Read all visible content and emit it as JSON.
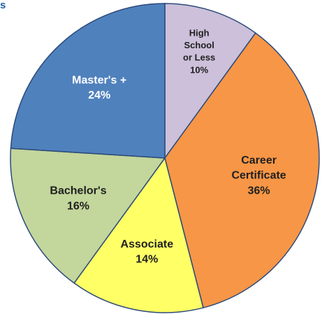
{
  "chart_data": {
    "type": "pie",
    "title": "s",
    "categories": [
      "High\nSchool\nor Less",
      "Career\nCertificate",
      "Associate",
      "Bachelor's",
      "Master's +"
    ],
    "values": [
      10,
      36,
      14,
      16,
      24
    ],
    "value_labels": [
      "10%",
      "36%",
      "14%",
      "16%",
      "24%"
    ],
    "colors": [
      "#ccc0da",
      "#f79646",
      "#ffff66",
      "#c3d69b",
      "#4f81bd"
    ],
    "label_colors": [
      "#1f1f1f",
      "#1f1f1f",
      "#1f1f1f",
      "#1f1f1f",
      "#ffffff"
    ]
  }
}
